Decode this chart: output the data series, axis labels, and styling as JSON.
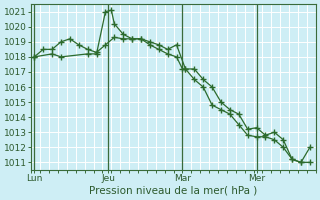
{
  "xlabel": "Pression niveau de la mer( hPa )",
  "bg_color": "#ceeef5",
  "grid_color": "#ffffff",
  "line_color": "#2d6b2d",
  "ylim": [
    1010.5,
    1021.5
  ],
  "yticks": [
    1011,
    1012,
    1013,
    1014,
    1015,
    1016,
    1017,
    1018,
    1019,
    1020,
    1021
  ],
  "day_labels": [
    "Lun",
    "Jeu",
    "Mar",
    "Mer"
  ],
  "day_positions": [
    0.5,
    13,
    25.5,
    38
  ],
  "vline_positions": [
    0.5,
    13,
    25.5,
    38
  ],
  "xlim": [
    0,
    48
  ],
  "line1_x": [
    0.5,
    2,
    3.5,
    5,
    6.5,
    8,
    9.5,
    11,
    12.5,
    14,
    15.5,
    17,
    18.5,
    20,
    21.5,
    23,
    24.5,
    26,
    27.5,
    29,
    30.5,
    32,
    33.5,
    35,
    36.5,
    38,
    39.5,
    41,
    42.5,
    44,
    45.5,
    47
  ],
  "line1_y": [
    1018.0,
    1018.5,
    1018.5,
    1019.0,
    1019.2,
    1018.8,
    1018.5,
    1018.3,
    1018.8,
    1019.3,
    1019.2,
    1019.2,
    1019.2,
    1019.0,
    1018.8,
    1018.5,
    1018.8,
    1017.2,
    1017.2,
    1016.5,
    1016.0,
    1015.0,
    1014.5,
    1014.2,
    1013.2,
    1013.3,
    1012.8,
    1013.0,
    1012.5,
    1011.2,
    1011.0,
    1012.0
  ],
  "line2_x": [
    0.5,
    3.5,
    5,
    9.5,
    11,
    12.5,
    13.5,
    14,
    15.5,
    17,
    18.5,
    20,
    21.5,
    23,
    24.5,
    25.5,
    26,
    27.5,
    29,
    30.5,
    32,
    33.5,
    35,
    36.5,
    38,
    39.5,
    41,
    42.5,
    44,
    45.5,
    47
  ],
  "line2_y": [
    1018.0,
    1018.2,
    1018.0,
    1018.2,
    1018.2,
    1021.0,
    1021.1,
    1020.2,
    1019.5,
    1019.2,
    1019.2,
    1018.8,
    1018.5,
    1018.2,
    1018.0,
    1017.2,
    1017.2,
    1016.5,
    1016.0,
    1014.8,
    1014.5,
    1014.2,
    1013.5,
    1012.8,
    1012.7,
    1012.7,
    1012.5,
    1012.0,
    1011.2,
    1011.0,
    1011.0
  ]
}
